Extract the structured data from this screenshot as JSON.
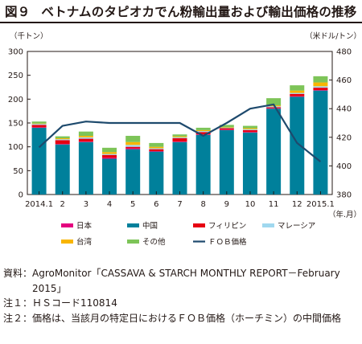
{
  "title": {
    "figure_no": "図９",
    "text": "ベトナムのタピオカでん粉輸出量および輸出価格の推移"
  },
  "chart_data": {
    "type": "bar",
    "stacked": true,
    "categories": [
      "2014.1",
      "2",
      "3",
      "4",
      "5",
      "6",
      "7",
      "8",
      "9",
      "10",
      "11",
      "12",
      "2015.1"
    ],
    "x_unit": "（年.月）",
    "left_axis": {
      "unit": "（千トン）",
      "range": [
        0,
        300
      ],
      "ticks": [
        "0",
        "50",
        "100",
        "150",
        "200",
        "250",
        "300"
      ]
    },
    "right_axis": {
      "unit": "（米ドル/トン）",
      "range": [
        380,
        480
      ],
      "ticks": [
        "380",
        "400",
        "420",
        "440",
        "460",
        "480"
      ]
    },
    "series": [
      {
        "name": "中国",
        "color": "#00809b",
        "values": [
          140,
          105,
          110,
          75,
          95,
          90,
          110,
          125,
          135,
          130,
          180,
          205,
          218
        ]
      },
      {
        "name": "日本",
        "color": "#e4007f",
        "values": [
          1,
          1,
          1,
          2,
          2,
          1,
          1,
          1,
          1,
          1,
          1,
          1,
          1
        ]
      },
      {
        "name": "フィリピン",
        "color": "#e60012",
        "values": [
          5,
          8,
          6,
          6,
          3,
          4,
          7,
          5,
          3,
          4,
          2,
          5,
          5
        ]
      },
      {
        "name": "マレーシア",
        "color": "#a0d8ef",
        "values": [
          2,
          2,
          3,
          2,
          4,
          2,
          2,
          2,
          1,
          2,
          2,
          2,
          3
        ]
      },
      {
        "name": "台湾",
        "color": "#f8b500",
        "values": [
          1,
          2,
          3,
          4,
          6,
          3,
          2,
          2,
          1,
          2,
          2,
          5,
          8
        ]
      },
      {
        "name": "その他",
        "color": "#7dc458",
        "values": [
          4,
          4,
          9,
          9,
          13,
          8,
          4,
          5,
          5,
          5,
          15,
          11,
          13
        ]
      }
    ],
    "line_series": {
      "name": "ＦＯＢ価格",
      "color": "#1e4a6d",
      "axis": "right",
      "values": [
        413,
        428,
        431,
        430,
        430,
        430,
        430,
        421,
        430,
        440,
        443,
        416,
        403
      ]
    },
    "legend_position": "bottom",
    "grid": false
  },
  "notes": [
    {
      "label": "資料：",
      "text": "AgroMonitor「CASSAVA & STARCH MONTHLY REPORT－February 2015」"
    },
    {
      "label": "注１：",
      "text": "ＨＳコード110814"
    },
    {
      "label": "注２：",
      "text": "価格は、当該月の特定日におけるＦＯＢ価格（ホーチミン）の中間価格"
    }
  ]
}
